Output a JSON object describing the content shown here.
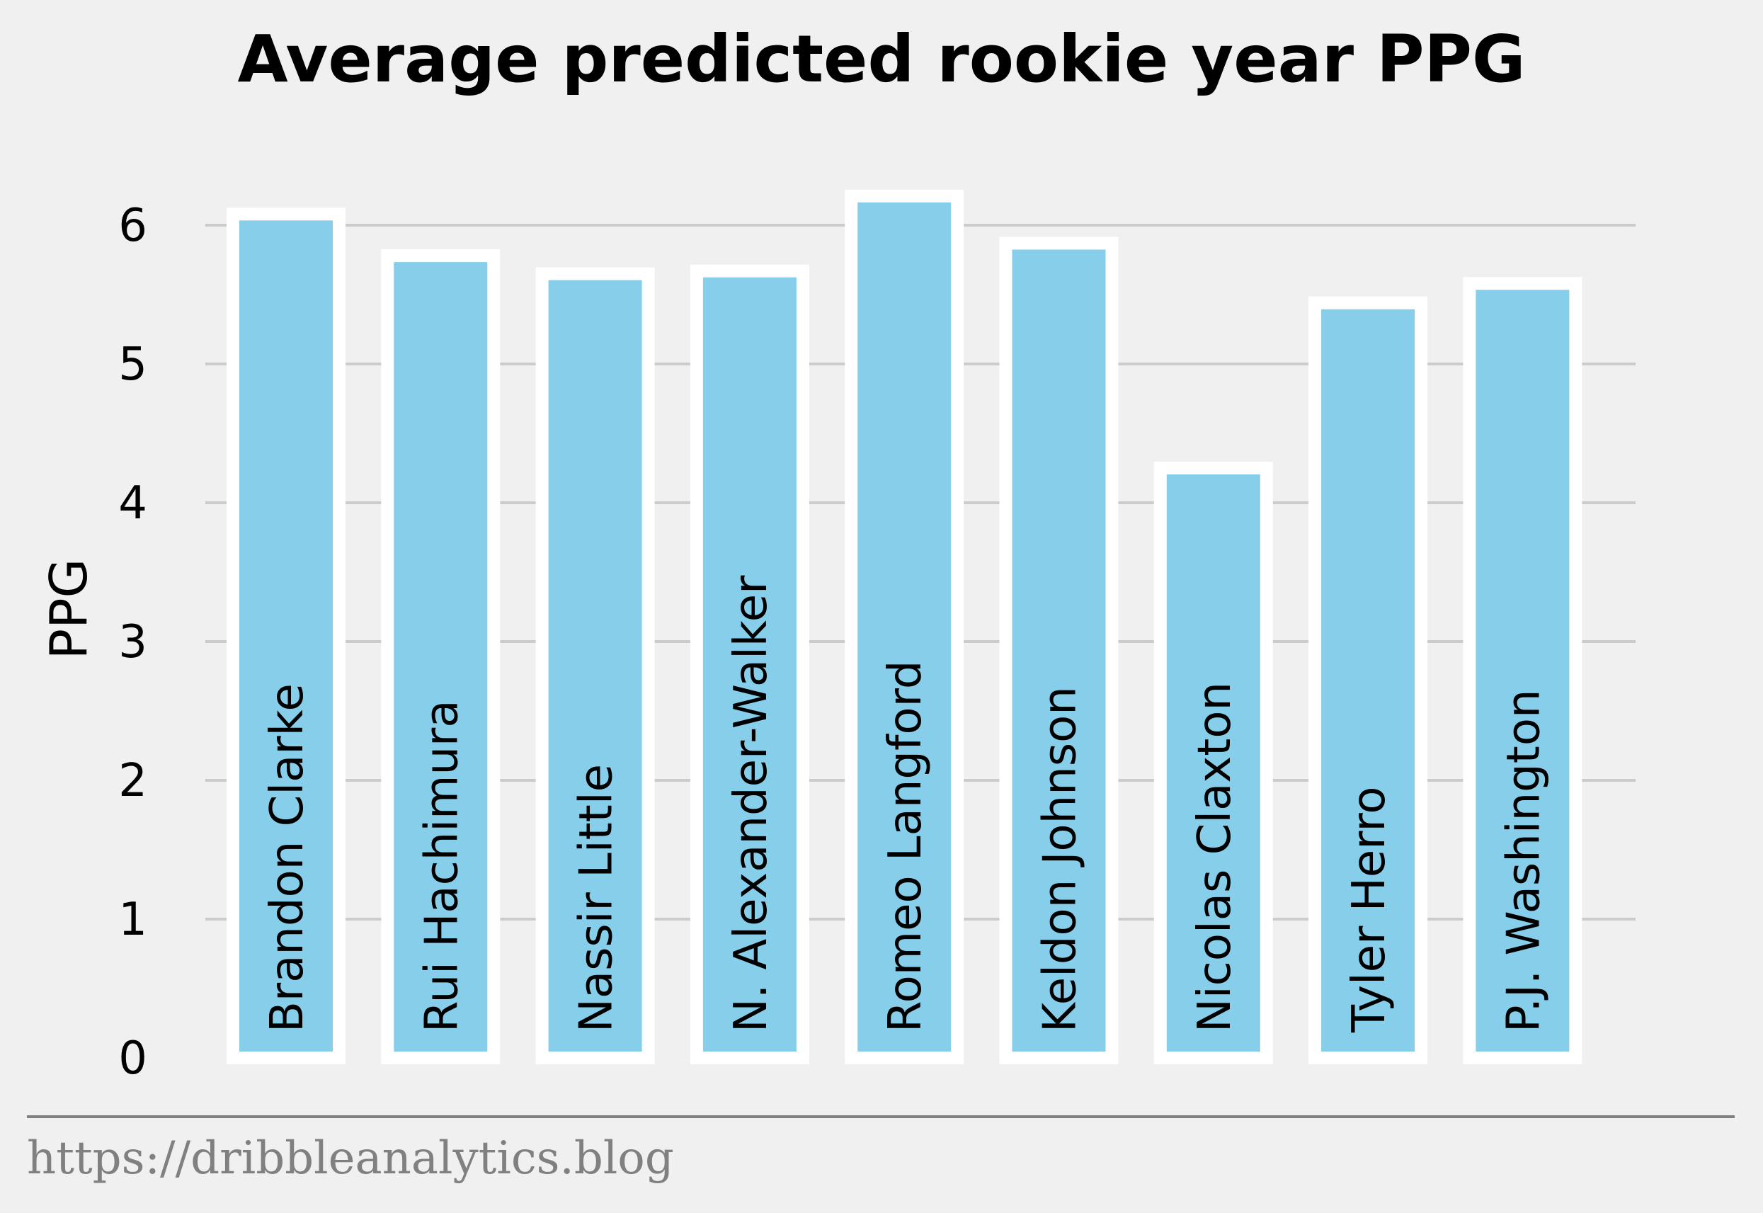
{
  "chart_data": {
    "type": "bar",
    "title": "Average predicted rookie year PPG",
    "ylabel": "PPG",
    "xlabel": "",
    "categories": [
      "Brandon Clarke",
      "Rui Hachimura",
      "Nassir Little",
      "N. Alexander-Walker",
      "Romeo Langford",
      "Keldon Johnson",
      "Nicolas Claxton",
      "Tyler Herro",
      "P.J. Washington"
    ],
    "values": [
      6.08,
      5.78,
      5.65,
      5.67,
      6.21,
      5.87,
      4.25,
      5.44,
      5.58
    ],
    "ylim": [
      0,
      6.4
    ],
    "yticks": [
      "0",
      "1",
      "2",
      "3",
      "4",
      "5",
      "6"
    ],
    "grid": "horizontal",
    "colors": {
      "bar_fill": "#87ceeb",
      "bar_edge": "#ffffff",
      "grid": "#cbcbcb",
      "background": "#f0f0f0",
      "source": "#808080"
    }
  },
  "footer": {
    "source": "https://dribbleanalytics.blog"
  }
}
